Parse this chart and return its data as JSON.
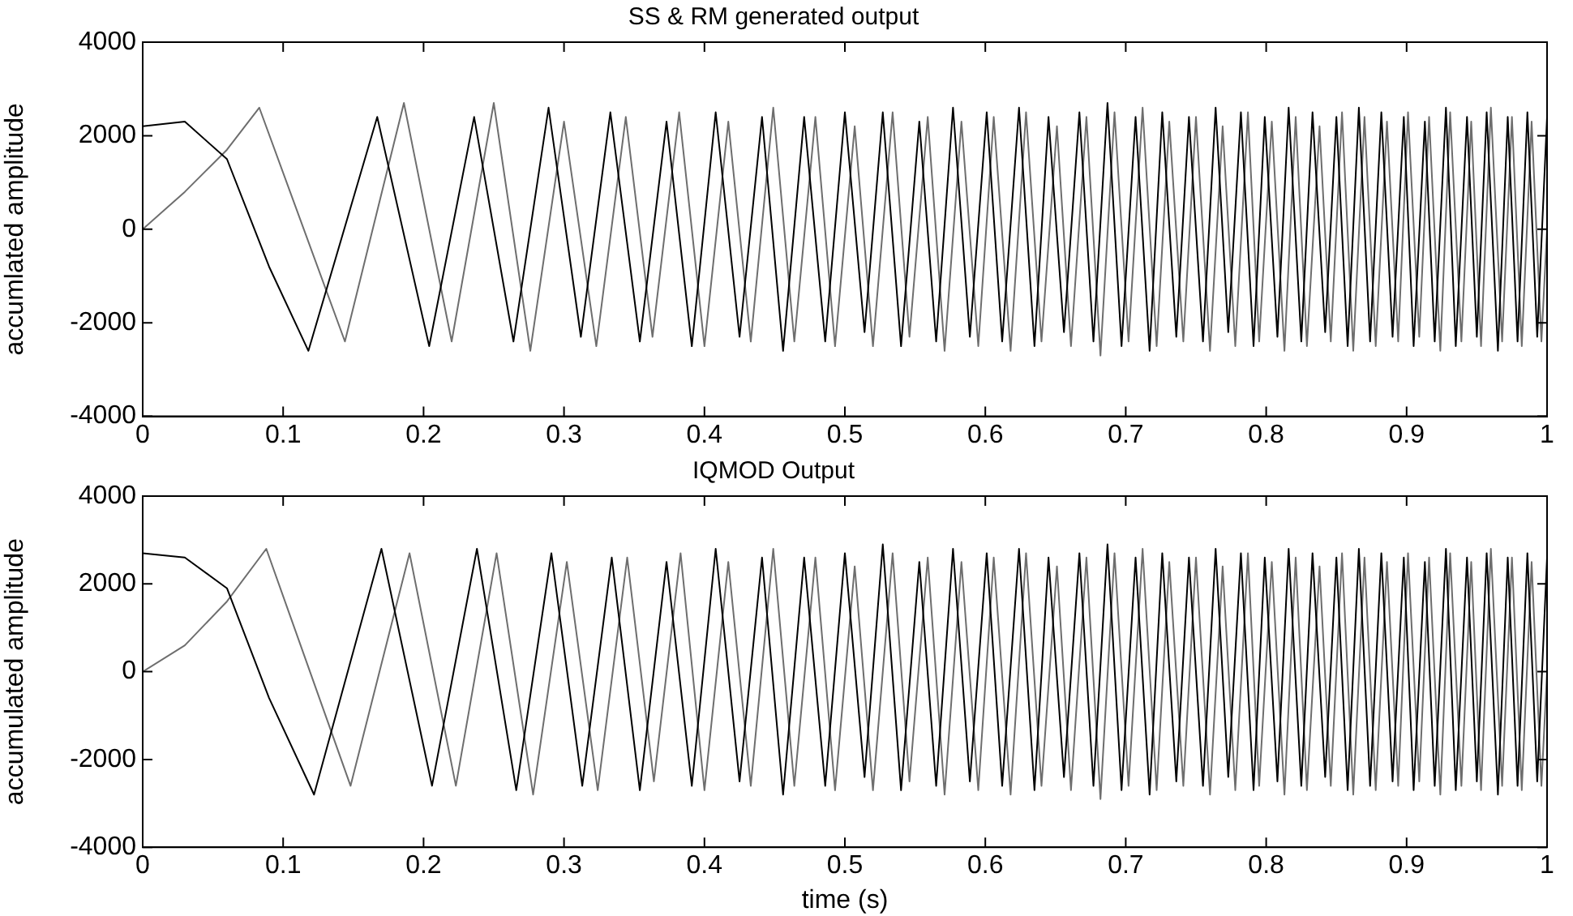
{
  "chart_data": [
    {
      "type": "line",
      "title": "SS & RM generated output",
      "ylabel": "accumlated amplitude",
      "xlim": [
        0,
        1
      ],
      "xticks": [
        0,
        0.1,
        0.2,
        0.3,
        0.4,
        0.5,
        0.6,
        0.7,
        0.8,
        0.9,
        1
      ],
      "ylim": [
        -4000,
        4000
      ],
      "yticks": [
        -4000,
        -2000,
        0,
        2000,
        4000
      ],
      "series": [
        {
          "color": "#000000",
          "x": [
            0,
            0.03,
            0.06,
            0.09,
            0.118,
            0.167,
            0.204,
            0.236,
            0.264,
            0.289,
            0.312,
            0.333,
            0.354,
            0.373,
            0.391,
            0.408,
            0.425,
            0.441,
            0.456,
            0.471,
            0.486,
            0.5,
            0.514,
            0.527,
            0.54,
            0.553,
            0.565,
            0.577,
            0.589,
            0.601,
            0.612,
            0.624,
            0.635,
            0.645,
            0.656,
            0.667,
            0.677,
            0.687,
            0.697,
            0.707,
            0.717,
            0.726,
            0.736,
            0.745,
            0.755,
            0.764,
            0.773,
            0.782,
            0.791,
            0.799,
            0.808,
            0.816,
            0.825,
            0.833,
            0.842,
            0.85,
            0.858,
            0.866,
            0.874,
            0.882,
            0.89,
            0.898,
            0.905,
            0.913,
            0.92,
            0.928,
            0.935,
            0.943,
            0.95,
            0.957,
            0.965,
            0.972,
            0.979,
            0.986,
            0.993,
            1
          ],
          "values": [
            2200,
            2300,
            1500,
            -800,
            -2600,
            2400,
            -2500,
            2400,
            -2400,
            2600,
            -2300,
            2500,
            -2400,
            2300,
            -2500,
            2500,
            -2300,
            2400,
            -2600,
            2400,
            -2400,
            2500,
            -2200,
            2500,
            -2500,
            2300,
            -2400,
            2600,
            -2300,
            2500,
            -2400,
            2600,
            -2500,
            2400,
            -2200,
            2500,
            -2400,
            2700,
            -2500,
            2400,
            -2600,
            2500,
            -2300,
            2400,
            -2400,
            2600,
            -2200,
            2500,
            -2500,
            2400,
            -2300,
            2600,
            -2400,
            2500,
            -2200,
            2400,
            -2500,
            2600,
            -2400,
            2500,
            -2300,
            2400,
            -2500,
            2300,
            -2400,
            2600,
            -2500,
            2400,
            -2300,
            2500,
            -2600,
            2400,
            -2400,
            2500,
            -2300,
            2400
          ]
        },
        {
          "color": "#6e6e6e",
          "x": [
            0,
            0.03,
            0.06,
            0.083,
            0.144,
            0.186,
            0.22,
            0.25,
            0.276,
            0.3,
            0.323,
            0.344,
            0.363,
            0.382,
            0.4,
            0.417,
            0.433,
            0.449,
            0.464,
            0.479,
            0.493,
            0.507,
            0.52,
            0.534,
            0.546,
            0.559,
            0.571,
            0.583,
            0.595,
            0.606,
            0.618,
            0.629,
            0.64,
            0.651,
            0.661,
            0.672,
            0.682,
            0.692,
            0.702,
            0.712,
            0.722,
            0.731,
            0.741,
            0.75,
            0.76,
            0.769,
            0.778,
            0.787,
            0.795,
            0.804,
            0.813,
            0.821,
            0.829,
            0.838,
            0.846,
            0.854,
            0.862,
            0.87,
            0.878,
            0.886,
            0.894,
            0.901,
            0.909,
            0.916,
            0.924,
            0.931,
            0.939,
            0.946,
            0.953,
            0.96,
            0.968,
            0.975,
            0.982,
            0.989,
            0.996,
            1
          ],
          "values": [
            0,
            800,
            1700,
            2600,
            -2400,
            2700,
            -2400,
            2700,
            -2600,
            2300,
            -2500,
            2400,
            -2300,
            2500,
            -2500,
            2300,
            -2400,
            2600,
            -2400,
            2400,
            -2500,
            2200,
            -2500,
            2500,
            -2300,
            2400,
            -2600,
            2300,
            -2500,
            2400,
            -2600,
            2500,
            -2400,
            2200,
            -2500,
            2400,
            -2700,
            2500,
            -2400,
            2600,
            -2500,
            2300,
            -2400,
            2400,
            -2600,
            2200,
            -2500,
            2500,
            -2400,
            2300,
            -2600,
            2400,
            -2500,
            2200,
            -2400,
            2500,
            -2600,
            2400,
            -2500,
            2300,
            -2400,
            2500,
            -2300,
            2400,
            -2600,
            2500,
            -2400,
            2300,
            -2500,
            2600,
            -2400,
            2400,
            -2500,
            2300,
            -2400,
            0
          ]
        }
      ]
    },
    {
      "type": "line",
      "title": "IQMOD Output",
      "xlabel": "time (s)",
      "ylabel": "accumulated amplitude",
      "xlim": [
        0,
        1
      ],
      "xticks": [
        0,
        0.1,
        0.2,
        0.3,
        0.4,
        0.5,
        0.6,
        0.7,
        0.8,
        0.9,
        1
      ],
      "ylim": [
        -4000,
        4000
      ],
      "yticks": [
        -4000,
        -2000,
        0,
        2000,
        4000
      ],
      "series": [
        {
          "color": "#000000",
          "x": [
            0,
            0.03,
            0.06,
            0.09,
            0.122,
            0.17,
            0.206,
            0.238,
            0.266,
            0.291,
            0.313,
            0.334,
            0.354,
            0.373,
            0.391,
            0.408,
            0.425,
            0.441,
            0.456,
            0.471,
            0.486,
            0.5,
            0.514,
            0.527,
            0.54,
            0.553,
            0.565,
            0.577,
            0.589,
            0.601,
            0.612,
            0.624,
            0.635,
            0.645,
            0.656,
            0.667,
            0.677,
            0.687,
            0.697,
            0.707,
            0.717,
            0.726,
            0.736,
            0.745,
            0.755,
            0.764,
            0.773,
            0.782,
            0.791,
            0.799,
            0.808,
            0.816,
            0.825,
            0.833,
            0.842,
            0.85,
            0.858,
            0.866,
            0.874,
            0.882,
            0.89,
            0.898,
            0.905,
            0.913,
            0.92,
            0.928,
            0.935,
            0.943,
            0.95,
            0.957,
            0.965,
            0.972,
            0.979,
            0.986,
            0.993,
            1
          ],
          "values": [
            2700,
            2600,
            1900,
            -600,
            -2800,
            2800,
            -2600,
            2800,
            -2700,
            2700,
            -2600,
            2600,
            -2700,
            2500,
            -2600,
            2800,
            -2500,
            2600,
            -2800,
            2600,
            -2600,
            2700,
            -2400,
            2900,
            -2700,
            2500,
            -2600,
            2800,
            -2500,
            2700,
            -2600,
            2800,
            -2700,
            2600,
            -2400,
            2700,
            -2600,
            2900,
            -2700,
            2600,
            -2800,
            2700,
            -2500,
            2600,
            -2600,
            2800,
            -2400,
            2700,
            -2700,
            2600,
            -2500,
            2800,
            -2600,
            2700,
            -2400,
            2600,
            -2700,
            2800,
            -2600,
            2700,
            -2500,
            2600,
            -2700,
            2500,
            -2600,
            2800,
            -2700,
            2600,
            -2500,
            2700,
            -2800,
            2600,
            -2600,
            2700,
            -2500,
            2600
          ]
        },
        {
          "color": "#6e6e6e",
          "x": [
            0,
            0.03,
            0.06,
            0.088,
            0.148,
            0.19,
            0.223,
            0.252,
            0.278,
            0.302,
            0.324,
            0.345,
            0.364,
            0.383,
            0.4,
            0.417,
            0.433,
            0.449,
            0.464,
            0.479,
            0.493,
            0.507,
            0.52,
            0.534,
            0.546,
            0.559,
            0.571,
            0.583,
            0.595,
            0.606,
            0.618,
            0.629,
            0.64,
            0.651,
            0.661,
            0.672,
            0.682,
            0.692,
            0.702,
            0.712,
            0.722,
            0.731,
            0.741,
            0.75,
            0.76,
            0.769,
            0.778,
            0.787,
            0.795,
            0.804,
            0.813,
            0.821,
            0.829,
            0.838,
            0.846,
            0.854,
            0.862,
            0.87,
            0.878,
            0.886,
            0.894,
            0.901,
            0.909,
            0.916,
            0.924,
            0.931,
            0.939,
            0.946,
            0.953,
            0.96,
            0.968,
            0.975,
            0.982,
            0.989,
            0.996,
            1
          ],
          "values": [
            0,
            600,
            1600,
            2800,
            -2600,
            2700,
            -2600,
            2700,
            -2800,
            2500,
            -2700,
            2600,
            -2500,
            2700,
            -2700,
            2500,
            -2600,
            2800,
            -2600,
            2600,
            -2700,
            2400,
            -2700,
            2700,
            -2500,
            2600,
            -2800,
            2500,
            -2700,
            2600,
            -2800,
            2700,
            -2600,
            2400,
            -2700,
            2600,
            -2900,
            2700,
            -2600,
            2800,
            -2700,
            2500,
            -2600,
            2600,
            -2800,
            2400,
            -2700,
            2700,
            -2600,
            2500,
            -2800,
            2600,
            -2700,
            2400,
            -2600,
            2700,
            -2800,
            2600,
            -2700,
            2500,
            -2600,
            2700,
            -2500,
            2600,
            -2800,
            2700,
            -2600,
            2500,
            -2700,
            2800,
            -2600,
            2600,
            -2700,
            2500,
            -2600,
            0
          ]
        }
      ]
    }
  ]
}
